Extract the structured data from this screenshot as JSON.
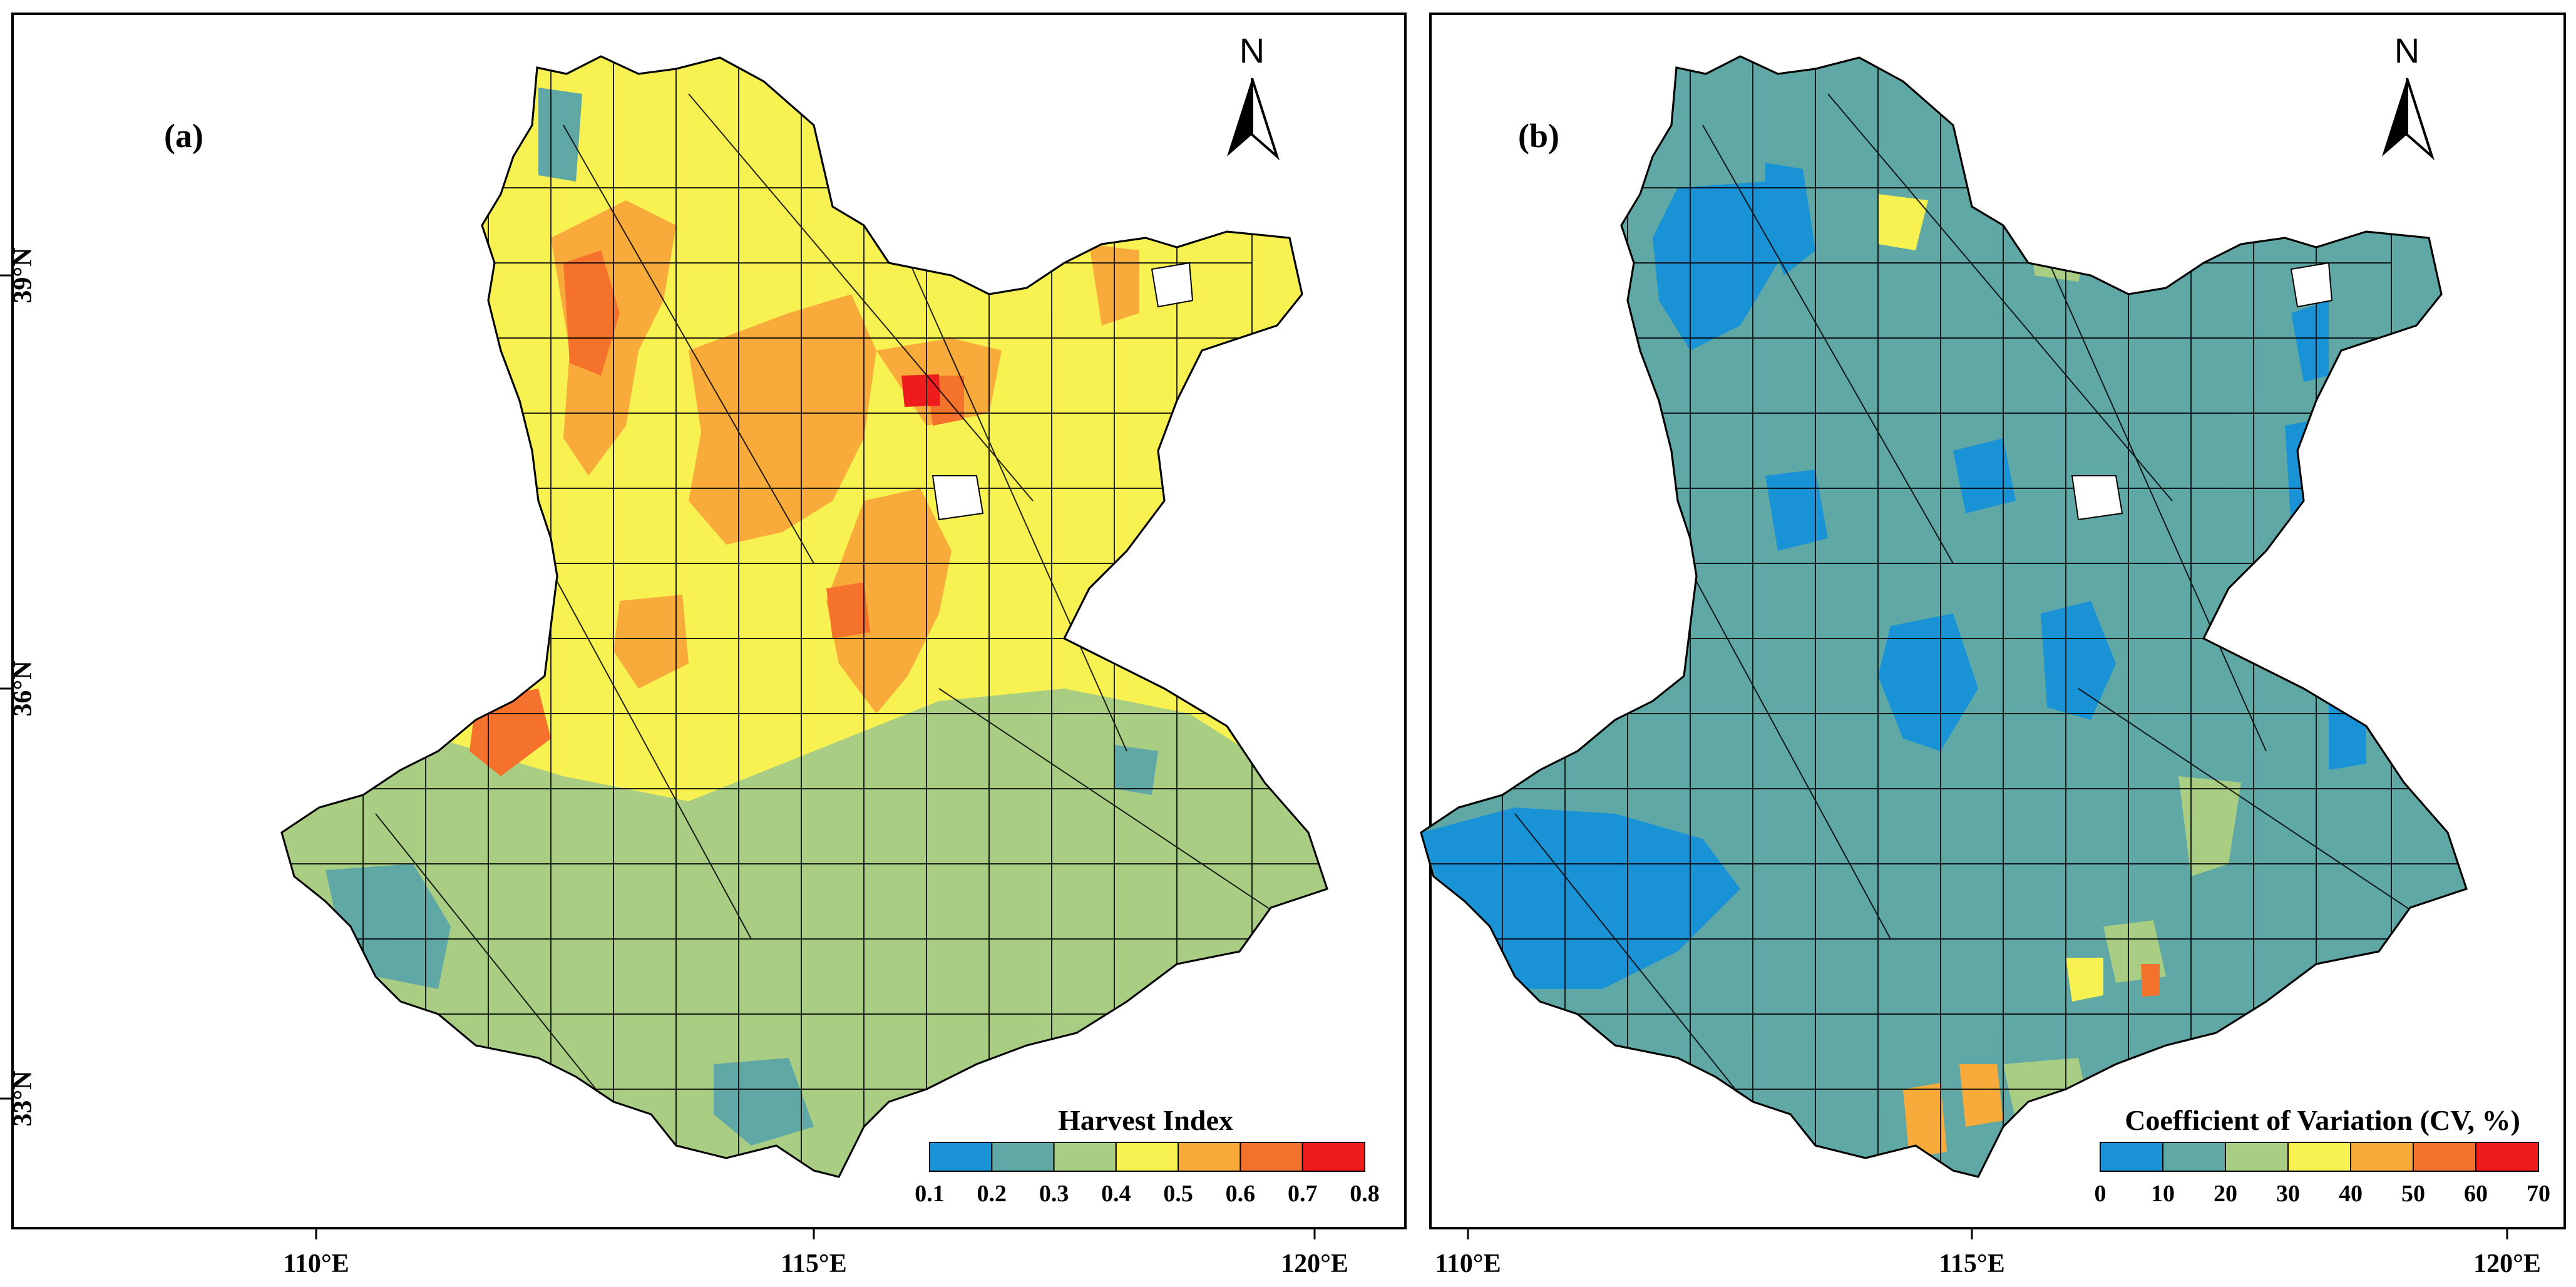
{
  "figure": {
    "panels": [
      {
        "id": "a",
        "label": "(a)",
        "north": "N",
        "legend": {
          "title": "Harvest Index",
          "ticks": [
            "0.1",
            "0.2",
            "0.3",
            "0.4",
            "0.5",
            "0.6",
            "0.7",
            "0.8"
          ],
          "colors": [
            "#1a92d6",
            "#5fa8a6",
            "#a9cd83",
            "#f7f151",
            "#f8aa3a",
            "#f4722b",
            "#ee1c1c"
          ]
        },
        "x_ticks": [
          "110°E",
          "115°E",
          "120°E"
        ],
        "y_ticks": [
          "39°N",
          "36°N",
          "33°N"
        ],
        "base_color": "#f7f151"
      },
      {
        "id": "b",
        "label": "(b)",
        "north": "N",
        "legend": {
          "title": "Coefficient of Variation (CV, %)",
          "ticks": [
            "0",
            "10",
            "20",
            "30",
            "40",
            "50",
            "60",
            "70"
          ],
          "colors": [
            "#1a92d6",
            "#5fa8a6",
            "#a9cd83",
            "#f7f151",
            "#f8aa3a",
            "#f4722b",
            "#ee1c1c"
          ]
        },
        "x_ticks": [
          "110°E",
          "115°E",
          "120°E"
        ],
        "y_ticks": [],
        "base_color": "#5fa8a6"
      }
    ]
  }
}
